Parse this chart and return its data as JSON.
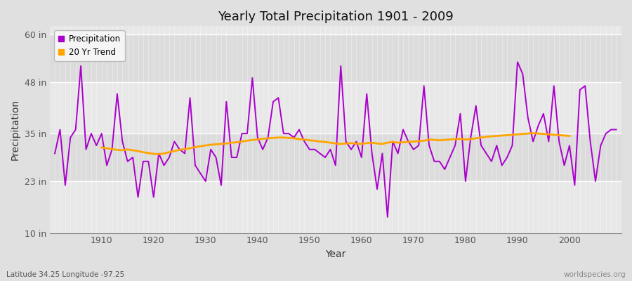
{
  "title": "Yearly Total Precipitation 1901 - 2009",
  "xlabel": "Year",
  "ylabel": "Precipitation",
  "lat_lon_label": "Latitude 34.25 Longitude -97.25",
  "source_label": "worldspecies.org",
  "ylim": [
    10,
    62
  ],
  "yticks": [
    10,
    23,
    35,
    48,
    60
  ],
  "ytick_labels": [
    "10 in",
    "23 in",
    "35 in",
    "48 in",
    "60 in"
  ],
  "xlim": [
    1900,
    2010
  ],
  "xticks": [
    1910,
    1920,
    1930,
    1940,
    1950,
    1960,
    1970,
    1980,
    1990,
    2000
  ],
  "precip_color": "#aa00cc",
  "trend_color": "#FFA500",
  "fig_bg_color": "#E0E0E0",
  "plot_bg_color": "#E8E8E8",
  "precip_linewidth": 1.4,
  "trend_linewidth": 2.0,
  "years": [
    1901,
    1902,
    1903,
    1904,
    1905,
    1906,
    1907,
    1908,
    1909,
    1910,
    1911,
    1912,
    1913,
    1914,
    1915,
    1916,
    1917,
    1918,
    1919,
    1920,
    1921,
    1922,
    1923,
    1924,
    1925,
    1926,
    1927,
    1928,
    1929,
    1930,
    1931,
    1932,
    1933,
    1934,
    1935,
    1936,
    1937,
    1938,
    1939,
    1940,
    1941,
    1942,
    1943,
    1944,
    1945,
    1946,
    1947,
    1948,
    1949,
    1950,
    1951,
    1952,
    1953,
    1954,
    1955,
    1956,
    1957,
    1958,
    1959,
    1960,
    1961,
    1962,
    1963,
    1964,
    1965,
    1966,
    1967,
    1968,
    1969,
    1970,
    1971,
    1972,
    1973,
    1974,
    1975,
    1976,
    1977,
    1978,
    1979,
    1980,
    1981,
    1982,
    1983,
    1984,
    1985,
    1986,
    1987,
    1988,
    1989,
    1990,
    1991,
    1992,
    1993,
    1994,
    1995,
    1996,
    1997,
    1998,
    1999,
    2000,
    2001,
    2002,
    2003,
    2004,
    2005,
    2006,
    2007,
    2008,
    2009
  ],
  "precipitation": [
    30,
    36,
    22,
    34,
    36,
    52,
    31,
    35,
    32,
    35,
    27,
    31,
    45,
    33,
    28,
    29,
    19,
    28,
    28,
    19,
    30,
    27,
    29,
    33,
    31,
    30,
    44,
    27,
    25,
    23,
    31,
    29,
    22,
    43,
    29,
    29,
    35,
    35,
    49,
    34,
    31,
    34,
    43,
    44,
    35,
    35,
    34,
    36,
    33,
    31,
    31,
    30,
    29,
    31,
    27,
    52,
    33,
    31,
    33,
    29,
    45,
    30,
    21,
    30,
    14,
    33,
    30,
    36,
    33,
    31,
    32,
    47,
    32,
    28,
    28,
    26,
    29,
    32,
    40,
    23,
    34,
    42,
    32,
    30,
    28,
    32,
    27,
    29,
    32,
    53,
    50,
    39,
    33,
    37,
    40,
    33,
    47,
    33,
    27,
    32,
    22,
    46,
    47,
    33,
    23,
    32,
    35,
    36,
    36
  ],
  "trend": [
    null,
    null,
    null,
    null,
    null,
    null,
    null,
    null,
    null,
    31.5,
    31.3,
    31.1,
    30.9,
    30.8,
    31.0,
    30.8,
    30.6,
    30.3,
    30.1,
    29.9,
    29.8,
    30.0,
    30.3,
    30.6,
    30.9,
    31.1,
    31.3,
    31.6,
    31.8,
    32.0,
    32.2,
    32.3,
    32.4,
    32.5,
    32.7,
    32.8,
    33.0,
    33.2,
    33.4,
    33.5,
    33.7,
    33.8,
    33.9,
    34.0,
    34.0,
    33.9,
    33.8,
    33.6,
    33.5,
    33.3,
    33.2,
    33.0,
    32.9,
    32.7,
    32.5,
    32.4,
    32.5,
    32.6,
    32.5,
    32.4,
    32.6,
    32.7,
    32.5,
    32.4,
    32.7,
    32.9,
    32.7,
    32.8,
    32.9,
    33.0,
    33.1,
    33.2,
    33.5,
    33.4,
    33.3,
    33.4,
    33.5,
    33.6,
    33.7,
    33.5,
    33.6,
    33.8,
    34.0,
    34.2,
    34.3,
    34.4,
    34.5,
    34.6,
    34.7,
    34.8,
    34.9,
    35.0,
    35.1,
    35.0,
    34.9,
    34.8,
    34.7,
    34.6,
    34.5,
    34.4,
    null,
    null,
    null,
    null,
    null,
    null,
    null,
    null,
    null
  ]
}
